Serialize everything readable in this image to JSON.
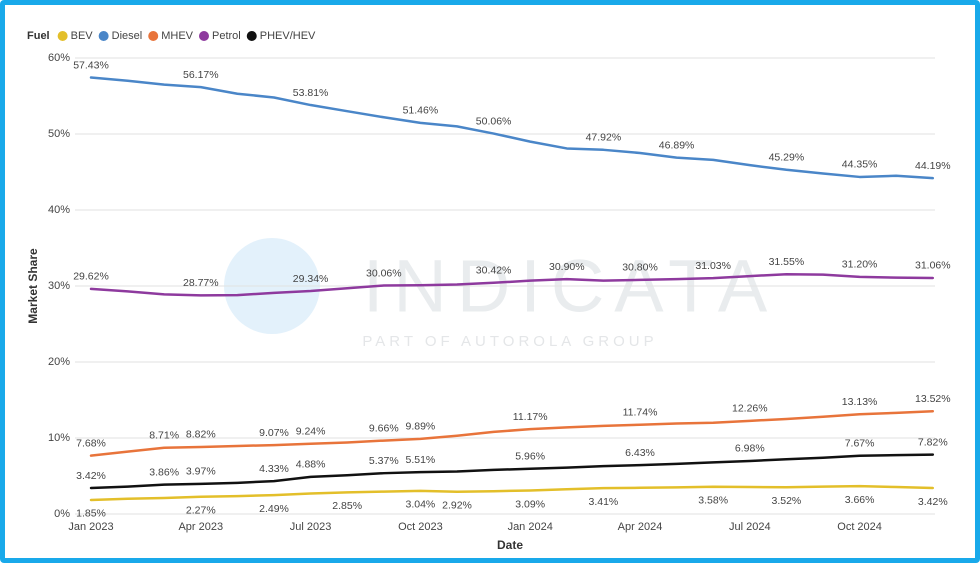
{
  "chart_data": {
    "type": "line",
    "legend_title": "Fuel",
    "x_label": "Date",
    "y_label": "Market Share",
    "watermark": "INDICATA",
    "watermark_subtitle": "PART OF AUTOROLA GROUP",
    "categories": [
      "Jan 2023",
      null,
      null,
      "Apr 2023",
      null,
      null,
      "Jul 2023",
      null,
      null,
      "Oct 2023",
      null,
      null,
      "Jan 2024",
      null,
      null,
      "Apr 2024",
      null,
      null,
      "Jul 2024",
      null,
      null,
      "Oct 2024",
      null,
      null
    ],
    "ylim": [
      0,
      60
    ],
    "yticks": [
      {
        "value": 0,
        "label": "0%"
      },
      {
        "value": 10,
        "label": "10%"
      },
      {
        "value": 20,
        "label": "20%"
      },
      {
        "value": 30,
        "label": "30%"
      },
      {
        "value": 40,
        "label": "40%"
      },
      {
        "value": 50,
        "label": "50%"
      },
      {
        "value": 60,
        "label": "60%"
      }
    ],
    "grid": true,
    "legend": "top-left",
    "series": [
      {
        "name": "BEV",
        "color": "#e3bf2a",
        "values": [
          1.85,
          2.0,
          2.1,
          2.27,
          2.35,
          2.49,
          2.7,
          2.85,
          2.95,
          3.04,
          2.92,
          3.0,
          3.09,
          3.25,
          3.41,
          3.45,
          3.5,
          3.58,
          3.55,
          3.52,
          3.6,
          3.66,
          3.55,
          3.42
        ],
        "value_labels": [
          "1.85%",
          null,
          null,
          "2.27%",
          null,
          "2.49%",
          null,
          "2.85%",
          null,
          "3.04%",
          "2.92%",
          null,
          "3.09%",
          null,
          "3.41%",
          null,
          null,
          "3.58%",
          null,
          "3.52%",
          null,
          "3.66%",
          null,
          "3.42%"
        ]
      },
      {
        "name": "Diesel",
        "color": "#4a86c8",
        "values": [
          57.43,
          57.0,
          56.5,
          56.17,
          55.3,
          54.8,
          53.81,
          53.0,
          52.2,
          51.46,
          51.0,
          50.06,
          49.0,
          48.1,
          47.92,
          47.5,
          46.89,
          46.6,
          45.9,
          45.29,
          44.8,
          44.35,
          44.5,
          44.19
        ],
        "value_labels": [
          "57.43%",
          null,
          null,
          "56.17%",
          null,
          null,
          "53.81%",
          null,
          null,
          "51.46%",
          null,
          "50.06%",
          null,
          null,
          "47.92%",
          null,
          "46.89%",
          null,
          null,
          "45.29%",
          null,
          "44.35%",
          null,
          "44.19%"
        ]
      },
      {
        "name": "MHEV",
        "color": "#e8743b",
        "values": [
          7.68,
          8.2,
          8.71,
          8.82,
          8.95,
          9.07,
          9.24,
          9.4,
          9.66,
          9.89,
          10.3,
          10.8,
          11.17,
          11.4,
          11.6,
          11.74,
          11.9,
          12.0,
          12.26,
          12.5,
          12.8,
          13.13,
          13.3,
          13.52
        ],
        "value_labels": [
          "7.68%",
          null,
          "8.71%",
          "8.82%",
          null,
          "9.07%",
          "9.24%",
          null,
          "9.66%",
          "9.89%",
          null,
          null,
          "11.17%",
          null,
          null,
          "11.74%",
          null,
          null,
          "12.26%",
          null,
          null,
          "13.13%",
          null,
          "13.52%"
        ]
      },
      {
        "name": "Petrol",
        "color": "#8e3a9e",
        "values": [
          29.62,
          29.3,
          28.9,
          28.77,
          28.8,
          29.1,
          29.34,
          29.7,
          30.06,
          30.1,
          30.2,
          30.42,
          30.7,
          30.9,
          30.7,
          30.8,
          30.9,
          31.03,
          31.3,
          31.55,
          31.5,
          31.2,
          31.1,
          31.06
        ],
        "value_labels": [
          "29.62%",
          null,
          null,
          "28.77%",
          null,
          null,
          "29.34%",
          null,
          "30.06%",
          null,
          null,
          "30.42%",
          null,
          "30.90%",
          null,
          "30.80%",
          null,
          "31.03%",
          null,
          "31.55%",
          null,
          "31.20%",
          null,
          "31.06%"
        ]
      },
      {
        "name": "PHEV/HEV",
        "color": "#111111",
        "values": [
          3.42,
          3.6,
          3.86,
          3.97,
          4.1,
          4.33,
          4.88,
          5.1,
          5.37,
          5.51,
          5.6,
          5.8,
          5.96,
          6.1,
          6.3,
          6.43,
          6.6,
          6.8,
          6.98,
          7.2,
          7.4,
          7.67,
          7.75,
          7.82
        ],
        "value_labels": [
          "3.42%",
          null,
          "3.86%",
          "3.97%",
          null,
          "4.33%",
          "4.88%",
          null,
          "5.37%",
          "5.51%",
          null,
          null,
          "5.96%",
          null,
          null,
          "6.43%",
          null,
          null,
          "6.98%",
          null,
          null,
          "7.67%",
          null,
          "7.82%"
        ]
      }
    ]
  }
}
